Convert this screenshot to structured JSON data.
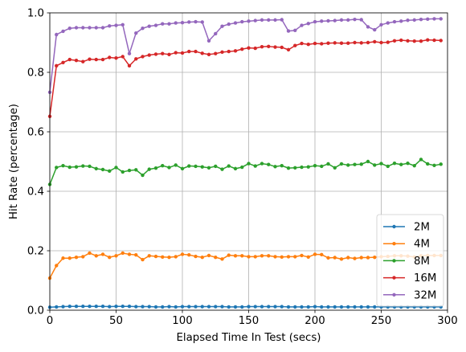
{
  "chart_data": {
    "type": "line",
    "title": "",
    "xlabel": "Elapsed Time In Test (secs)",
    "ylabel": "Hit Rate (percentage)",
    "xlim": [
      0,
      300
    ],
    "ylim": [
      0,
      1.0
    ],
    "xticks": [
      0,
      50,
      100,
      150,
      200,
      250,
      300
    ],
    "xtick_labels": [
      "0",
      "50",
      "100",
      "150",
      "200",
      "250",
      "300"
    ],
    "yticks": [
      0,
      0.2,
      0.4,
      0.6,
      0.8,
      1.0
    ],
    "ytick_labels": [
      "0.0",
      "0.2",
      "0.4",
      "0.6",
      "0.8",
      "1.0"
    ],
    "grid": true,
    "legend_position": "lower-right",
    "x": [
      0,
      5,
      10,
      15,
      20,
      25,
      30,
      35,
      40,
      45,
      50,
      55,
      60,
      65,
      70,
      75,
      80,
      85,
      90,
      95,
      100,
      105,
      110,
      115,
      120,
      125,
      130,
      135,
      140,
      145,
      150,
      155,
      160,
      165,
      170,
      175,
      180,
      185,
      190,
      195,
      200,
      205,
      210,
      215,
      220,
      225,
      230,
      235,
      240,
      245,
      250,
      255,
      260,
      265,
      270,
      275,
      280,
      285,
      290,
      295
    ],
    "series": [
      {
        "name": "2M",
        "color": "#1f77b4",
        "values": [
          0.01,
          0.011,
          0.012,
          0.013,
          0.013,
          0.013,
          0.013,
          0.013,
          0.013,
          0.012,
          0.013,
          0.013,
          0.013,
          0.012,
          0.012,
          0.012,
          0.011,
          0.011,
          0.012,
          0.011,
          0.012,
          0.012,
          0.012,
          0.012,
          0.012,
          0.012,
          0.012,
          0.011,
          0.011,
          0.011,
          0.012,
          0.012,
          0.012,
          0.012,
          0.012,
          0.012,
          0.011,
          0.011,
          0.011,
          0.011,
          0.012,
          0.011,
          0.011,
          0.011,
          0.011,
          0.011,
          0.011,
          0.011,
          0.011,
          0.011,
          0.011,
          0.011,
          0.011,
          0.011,
          0.011,
          0.011,
          0.011,
          0.011,
          0.011,
          0.011
        ]
      },
      {
        "name": "4M",
        "color": "#ff7f0e",
        "values": [
          0.108,
          0.15,
          0.175,
          0.175,
          0.178,
          0.18,
          0.192,
          0.183,
          0.188,
          0.178,
          0.183,
          0.192,
          0.188,
          0.186,
          0.17,
          0.183,
          0.181,
          0.179,
          0.178,
          0.18,
          0.188,
          0.186,
          0.181,
          0.178,
          0.184,
          0.178,
          0.172,
          0.185,
          0.183,
          0.183,
          0.18,
          0.18,
          0.183,
          0.183,
          0.18,
          0.179,
          0.18,
          0.18,
          0.184,
          0.179,
          0.188,
          0.187,
          0.176,
          0.177,
          0.172,
          0.177,
          0.174,
          0.177,
          0.177,
          0.178,
          0.18,
          0.181,
          0.183,
          0.183,
          0.182,
          0.179,
          0.183,
          0.184,
          0.184,
          0.184
        ]
      },
      {
        "name": "8M",
        "color": "#2ca02c",
        "values": [
          0.423,
          0.48,
          0.486,
          0.481,
          0.482,
          0.485,
          0.484,
          0.476,
          0.473,
          0.468,
          0.48,
          0.465,
          0.47,
          0.472,
          0.454,
          0.474,
          0.478,
          0.486,
          0.48,
          0.488,
          0.476,
          0.485,
          0.484,
          0.482,
          0.479,
          0.484,
          0.474,
          0.485,
          0.476,
          0.481,
          0.493,
          0.485,
          0.493,
          0.49,
          0.483,
          0.486,
          0.478,
          0.479,
          0.481,
          0.482,
          0.486,
          0.484,
          0.492,
          0.479,
          0.492,
          0.488,
          0.49,
          0.491,
          0.5,
          0.488,
          0.493,
          0.484,
          0.494,
          0.49,
          0.494,
          0.486,
          0.507,
          0.492,
          0.487,
          0.491
        ]
      },
      {
        "name": "16M",
        "color": "#d62728",
        "values": [
          0.652,
          0.822,
          0.833,
          0.843,
          0.84,
          0.836,
          0.844,
          0.843,
          0.843,
          0.85,
          0.848,
          0.853,
          0.822,
          0.845,
          0.853,
          0.858,
          0.861,
          0.863,
          0.86,
          0.866,
          0.865,
          0.87,
          0.87,
          0.864,
          0.86,
          0.863,
          0.868,
          0.87,
          0.872,
          0.878,
          0.882,
          0.881,
          0.886,
          0.887,
          0.885,
          0.884,
          0.876,
          0.89,
          0.897,
          0.894,
          0.897,
          0.896,
          0.898,
          0.899,
          0.898,
          0.898,
          0.9,
          0.899,
          0.9,
          0.903,
          0.9,
          0.901,
          0.906,
          0.908,
          0.906,
          0.905,
          0.905,
          0.909,
          0.908,
          0.907
        ]
      },
      {
        "name": "32M",
        "color": "#9467bd",
        "values": [
          0.733,
          0.927,
          0.938,
          0.948,
          0.95,
          0.95,
          0.95,
          0.95,
          0.95,
          0.956,
          0.958,
          0.96,
          0.863,
          0.932,
          0.948,
          0.955,
          0.958,
          0.963,
          0.963,
          0.966,
          0.967,
          0.969,
          0.97,
          0.969,
          0.906,
          0.93,
          0.955,
          0.962,
          0.966,
          0.97,
          0.972,
          0.974,
          0.976,
          0.976,
          0.976,
          0.977,
          0.939,
          0.941,
          0.958,
          0.964,
          0.97,
          0.972,
          0.973,
          0.974,
          0.976,
          0.976,
          0.978,
          0.977,
          0.953,
          0.943,
          0.96,
          0.966,
          0.97,
          0.972,
          0.975,
          0.976,
          0.978,
          0.979,
          0.98,
          0.98
        ]
      }
    ]
  }
}
